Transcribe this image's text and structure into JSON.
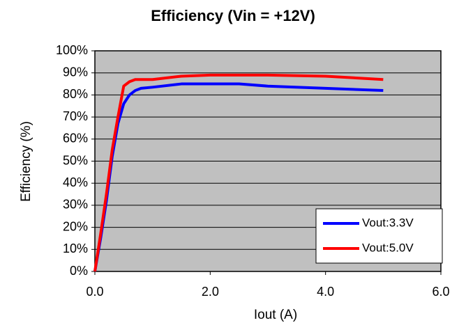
{
  "chart_data": {
    "type": "line",
    "title": "Efficiency (Vin = +12V)",
    "x_label": "Iout (A)",
    "y_label": "Efficiency (%)",
    "xlim": [
      0,
      6
    ],
    "ylim": [
      0,
      100
    ],
    "xticks": [
      {
        "value": 0,
        "label": "0.0"
      },
      {
        "value": 2,
        "label": "2.0"
      },
      {
        "value": 4,
        "label": "4.0"
      },
      {
        "value": 6,
        "label": "6.0"
      }
    ],
    "yticks": [
      {
        "value": 0,
        "label": "0%"
      },
      {
        "value": 10,
        "label": "10%"
      },
      {
        "value": 20,
        "label": "20%"
      },
      {
        "value": 30,
        "label": "30%"
      },
      {
        "value": 40,
        "label": "40%"
      },
      {
        "value": 50,
        "label": "50%"
      },
      {
        "value": 60,
        "label": "60%"
      },
      {
        "value": 70,
        "label": "70%"
      },
      {
        "value": 80,
        "label": "80%"
      },
      {
        "value": 90,
        "label": "90%"
      },
      {
        "value": 100,
        "label": "100%"
      }
    ],
    "grid": true,
    "background": "#c0c0c0",
    "legend": "lower right",
    "series": [
      {
        "name": "Vout:3.3V",
        "color": "#0000ff",
        "x": [
          0,
          0.1,
          0.2,
          0.3,
          0.4,
          0.5,
          0.6,
          0.7,
          0.8,
          1.0,
          1.5,
          2.0,
          2.5,
          3.0,
          4.0,
          5.0
        ],
        "values": [
          0,
          15,
          32,
          52,
          67,
          76,
          80,
          82,
          83,
          83.5,
          85,
          85,
          85,
          84,
          83,
          82
        ]
      },
      {
        "name": "Vout:5.0V",
        "color": "#ff0000",
        "x": [
          0,
          0.1,
          0.2,
          0.3,
          0.4,
          0.5,
          0.6,
          0.7,
          1.0,
          1.5,
          2.0,
          3.0,
          4.0,
          5.0
        ],
        "values": [
          0,
          17,
          35,
          55,
          70,
          84,
          86,
          87,
          87,
          88.5,
          89,
          89,
          88.5,
          87
        ]
      }
    ]
  }
}
